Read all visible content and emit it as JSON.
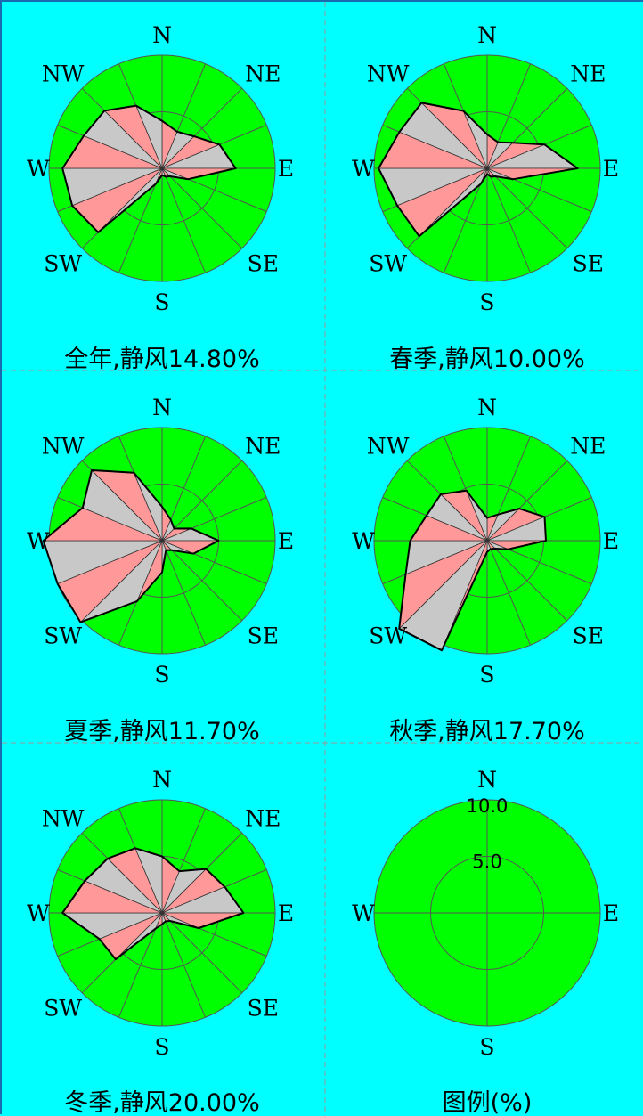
{
  "directions": [
    "N",
    "NNE",
    "NE",
    "ENE",
    "E",
    "ESE",
    "SE",
    "SSE",
    "S",
    "SSW",
    "SW",
    "WSW",
    "W",
    "WNW",
    "NW",
    "NNW"
  ],
  "compass_labels": {
    "N": "N",
    "NE": "NE",
    "E": "E",
    "SE": "SE",
    "S": "S",
    "SW": "SW",
    "W": "W",
    "NW": "NW"
  },
  "legend_compass_labels": {
    "N": "N",
    "E": "E",
    "S": "S",
    "W": "W"
  },
  "colors": {
    "background": "#00ffff",
    "disk": "#00ff00",
    "fill_a": "#ff9999",
    "fill_b": "#c8c8c8",
    "grid": "#555555",
    "divider": "#999999"
  },
  "chart_data": [
    {
      "type": "radar",
      "title": "全年,静风14.80%",
      "rmax": 10.0,
      "values": [
        4.2,
        3.5,
        4.0,
        5.5,
        6.5,
        2.5,
        1.0,
        0.8,
        0.6,
        1.5,
        8.0,
        8.6,
        8.8,
        7.5,
        7.2,
        6.0
      ]
    },
    {
      "type": "radar",
      "title": "春季,静风10.00%",
      "rmax": 10.0,
      "values": [
        3.0,
        2.5,
        3.2,
        5.5,
        8.0,
        2.5,
        1.0,
        0.8,
        0.5,
        1.5,
        8.5,
        8.6,
        9.6,
        8.4,
        8.2,
        5.5
      ]
    },
    {
      "type": "radar",
      "title": "夏季,静风11.70%",
      "rmax": 10.0,
      "values": [
        3.0,
        2.0,
        1.5,
        2.8,
        5.0,
        3.0,
        1.2,
        0.9,
        2.8,
        5.8,
        10.2,
        10.0,
        10.5,
        7.6,
        8.8,
        6.5
      ]
    },
    {
      "type": "radar",
      "title": "秋季,静风17.70%",
      "rmax": 10.0,
      "values": [
        2.0,
        2.5,
        4.0,
        5.5,
        5.2,
        2.0,
        1.0,
        0.8,
        1.0,
        10.5,
        11.0,
        7.8,
        6.8,
        5.8,
        5.8,
        4.8
      ]
    },
    {
      "type": "radar",
      "title": "冬季,静风20.00%",
      "rmax": 10.0,
      "values": [
        5.0,
        4.0,
        5.5,
        6.0,
        7.2,
        3.5,
        1.0,
        0.8,
        1.0,
        1.5,
        5.8,
        6.0,
        8.8,
        7.4,
        6.8,
        6.2
      ]
    }
  ],
  "legend": {
    "title": "图例(%)",
    "scale_outer": "10.0",
    "scale_inner": "5.0"
  }
}
